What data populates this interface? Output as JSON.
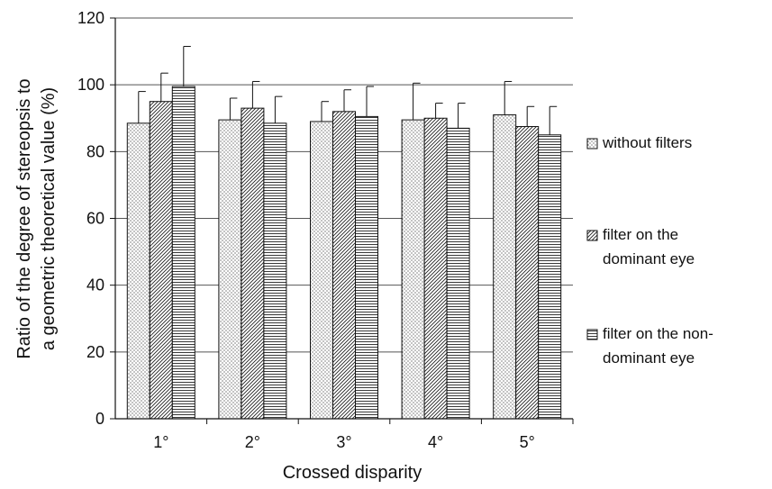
{
  "chart_data": {
    "type": "bar",
    "title": "",
    "xlabel": "Crossed disparity",
    "ylabel_lines": [
      "Ratio of the degree of stereopsis to",
      "a geometric theoretical value (%)"
    ],
    "categories": [
      "1°",
      "2°",
      "3°",
      "4°",
      "5°"
    ],
    "ylim": [
      0,
      120
    ],
    "yticks": [
      0,
      20,
      40,
      60,
      80,
      100,
      120
    ],
    "grid": true,
    "legend_position": "right",
    "series": [
      {
        "name": "without filters",
        "pattern": "dots",
        "values": [
          88.5,
          89.5,
          89,
          89.5,
          91
        ],
        "errors": [
          9.5,
          6.5,
          6,
          11,
          10
        ]
      },
      {
        "name": "filter on the dominant eye",
        "name_lines": [
          "filter on the",
          "dominant eye"
        ],
        "pattern": "diagonal",
        "values": [
          95,
          93,
          92,
          90,
          87.5
        ],
        "errors": [
          8.5,
          8,
          6.5,
          4.5,
          6
        ]
      },
      {
        "name": "filter on the non-dominant eye",
        "name_lines": [
          "filter on the non-",
          "dominant eye"
        ],
        "pattern": "horizontal",
        "values": [
          99.5,
          88.5,
          90.5,
          87,
          85
        ],
        "errors": [
          12,
          8,
          9,
          7.5,
          8.5
        ]
      }
    ]
  }
}
